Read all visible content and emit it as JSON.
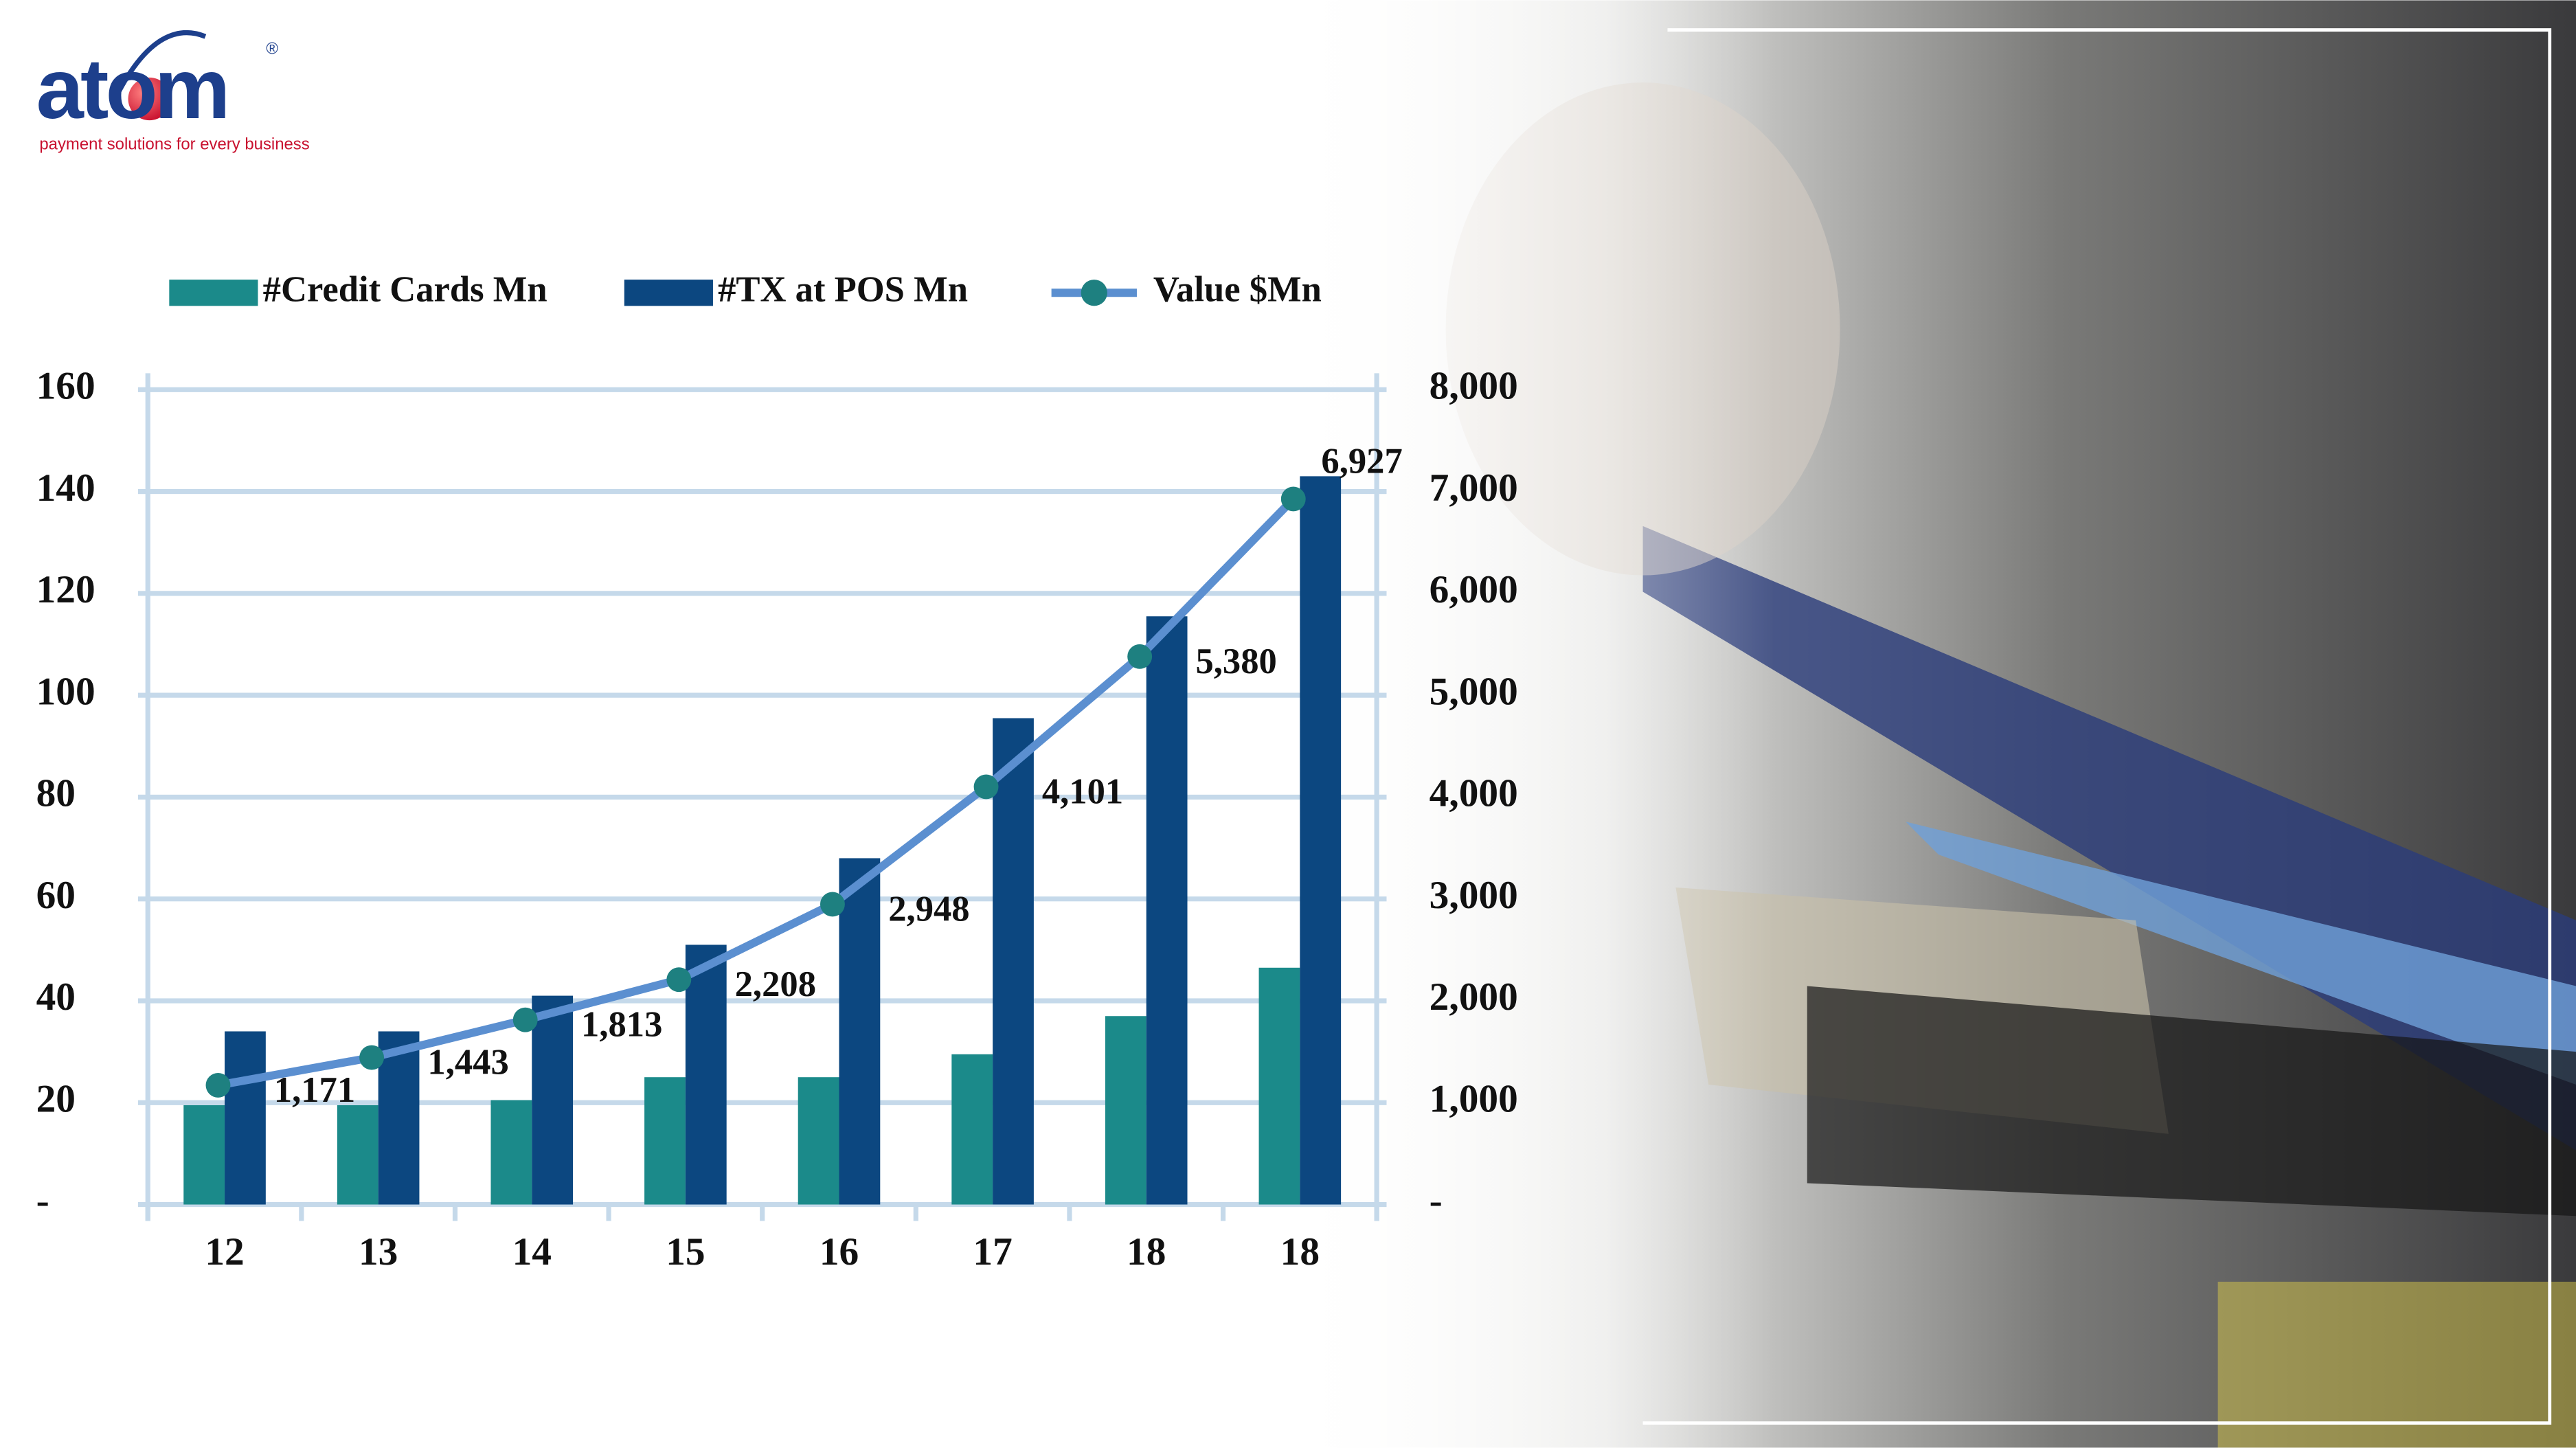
{
  "logo": {
    "name": "atom",
    "mark": "®",
    "tagline": "payment solutions for every business"
  },
  "chart_data": {
    "type": "bar-line",
    "categories": [
      "12",
      "13",
      "14",
      "15",
      "16",
      "17",
      "18",
      "18"
    ],
    "series": [
      {
        "name": "#Credit Cards Mn",
        "type": "bar",
        "color": "#1b8a8a",
        "values": [
          19.5,
          19.5,
          20.5,
          25,
          25,
          29.5,
          37,
          46.5
        ]
      },
      {
        "name": "#TX at POS Mn",
        "type": "bar",
        "color": "#0c4780",
        "values": [
          34,
          34,
          41,
          51,
          68,
          95.5,
          115.5,
          143
        ]
      },
      {
        "name": "Value $Mn",
        "type": "line",
        "axis": "y2",
        "color": "#5b8fd0",
        "marker_color": "#1e8080",
        "values": [
          1171,
          1443,
          1813,
          2208,
          2948,
          4101,
          5380,
          6927
        ],
        "value_labels": [
          "1,171",
          "1,443",
          "1,813",
          "2,208",
          "2,948",
          "4,101",
          "5,380",
          "6,927"
        ]
      }
    ],
    "ylim": [
      0,
      160
    ],
    "yticks": [
      {
        "value": 0,
        "label": "-"
      },
      20,
      40,
      60,
      80,
      100,
      120,
      140,
      160
    ],
    "y2lim": [
      0,
      8000
    ],
    "y2ticks": [
      {
        "value": 0,
        "label": "-"
      },
      {
        "value": 1000,
        "label": "1,000"
      },
      {
        "value": 2000,
        "label": "2,000"
      },
      {
        "value": 3000,
        "label": "3,000"
      },
      {
        "value": 4000,
        "label": "4,000"
      },
      {
        "value": 5000,
        "label": "5,000"
      },
      {
        "value": 6000,
        "label": "6,000"
      },
      {
        "value": 7000,
        "label": "7,000"
      },
      {
        "value": 8000,
        "label": "8,000"
      }
    ],
    "grid": true,
    "legend": "top"
  }
}
